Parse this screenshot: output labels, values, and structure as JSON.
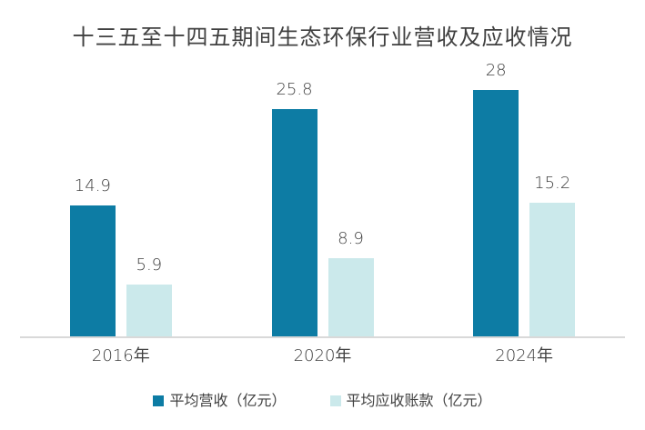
{
  "chart_data": {
    "type": "bar",
    "title": "十三五至十四五期间生态环保行业营收及应收情况",
    "categories": [
      "2016年",
      "2020年",
      "2024年"
    ],
    "series": [
      {
        "name": "平均营收（亿元）",
        "color": "#0d7ca4",
        "values": [
          14.9,
          25.8,
          28
        ]
      },
      {
        "name": "平均应收账款（亿元）",
        "color": "#cbe9eb",
        "values": [
          5.9,
          8.9,
          15.2
        ]
      }
    ],
    "xlabel": "",
    "ylabel": "",
    "ylim": [
      0,
      32
    ],
    "grid": false,
    "legend_position": "bottom",
    "data_labels": true
  },
  "colors": {
    "text": "#404040",
    "axis_line": "#d9d9d9",
    "background": "#ffffff"
  }
}
